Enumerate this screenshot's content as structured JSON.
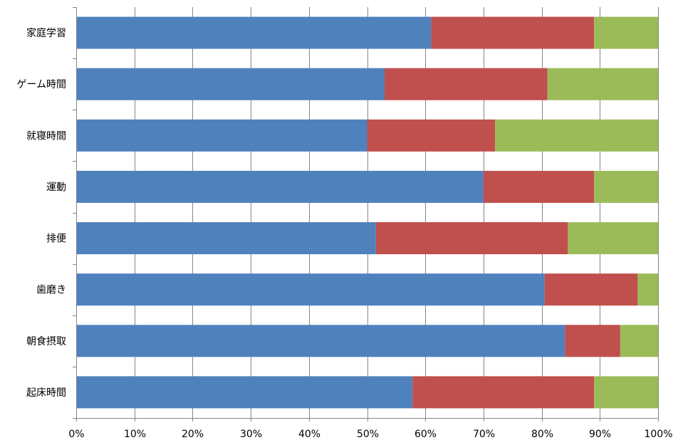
{
  "chart_data": {
    "type": "bar",
    "orientation": "horizontal",
    "stacked": true,
    "normalized_100_percent": true,
    "categories": [
      "家庭学習",
      "ゲーム時間",
      "就寝時間",
      "運動",
      "排便",
      "歯磨き",
      "朝食摂取",
      "起床時間"
    ],
    "series": [
      {
        "color": "#4F81BD",
        "values": [
          61,
          53,
          50,
          70,
          51.5,
          80.5,
          84,
          57.8
        ]
      },
      {
        "color": "#C0504D",
        "values": [
          28,
          28,
          22,
          19,
          33,
          16,
          9.5,
          31.2
        ]
      },
      {
        "color": "#9BBB59",
        "values": [
          11,
          19,
          28,
          11,
          15.5,
          3.5,
          6.5,
          11
        ]
      }
    ],
    "xlim": [
      0,
      100
    ],
    "x_ticks": [
      "0%",
      "10%",
      "20%",
      "30%",
      "40%",
      "50%",
      "60%",
      "70%",
      "80%",
      "90%",
      "100%"
    ],
    "grid": true,
    "legend": "none",
    "title": "",
    "xlabel": "",
    "ylabel": ""
  }
}
